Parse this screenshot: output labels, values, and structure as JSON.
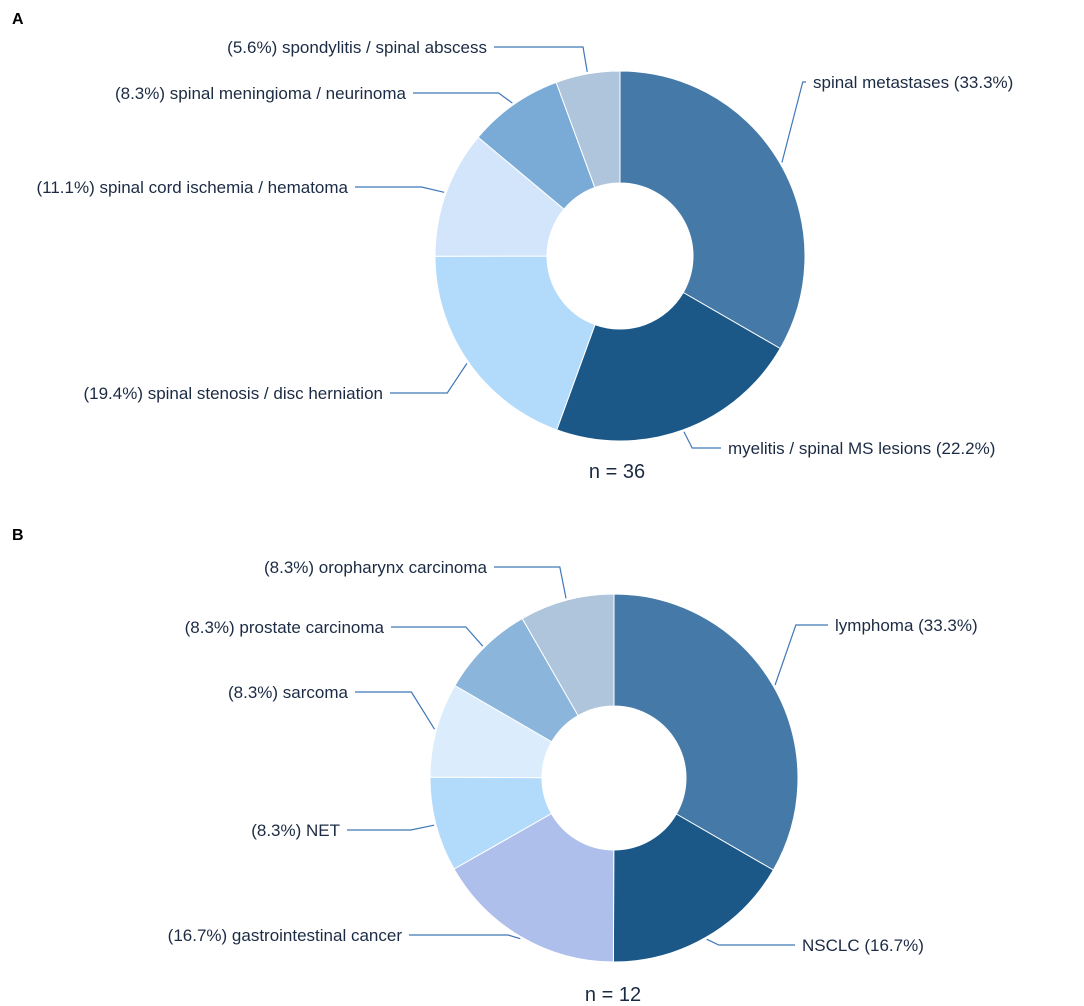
{
  "chart_data": [
    {
      "type": "pie",
      "panel": "A",
      "n_label": "n = 36",
      "slices": [
        {
          "label": "spinal metastases (33.3%)",
          "value": 33.3,
          "color": "#4479a8"
        },
        {
          "label": "myelitis / spinal MS lesions (22.2%)",
          "value": 22.2,
          "color": "#1b5888"
        },
        {
          "label": "(19.4%) spinal stenosis / disc herniation",
          "value": 19.4,
          "color": "#b2dafb"
        },
        {
          "label": "(11.1%) spinal cord ischemia / hematoma",
          "value": 11.1,
          "color": "#d3e5fa"
        },
        {
          "label": "(8.3%) spinal meningioma / neurinoma",
          "value": 8.3,
          "color": "#7aabd6"
        },
        {
          "label": "(5.6%) spondylitis / spinal abscess",
          "value": 5.6,
          "color": "#afc5db"
        }
      ]
    },
    {
      "type": "pie",
      "panel": "B",
      "n_label": "n = 12",
      "slices": [
        {
          "label": "lymphoma (33.3%)",
          "value": 33.3,
          "color": "#4479a8"
        },
        {
          "label": "NSCLC (16.7%)",
          "value": 16.7,
          "color": "#1b5888"
        },
        {
          "label": "(16.7%) gastrointestinal cancer",
          "value": 16.7,
          "color": "#afbfeb"
        },
        {
          "label": "(8.3%) NET",
          "value": 8.3,
          "color": "#b2dafb"
        },
        {
          "label": "(8.3%) sarcoma",
          "value": 8.3,
          "color": "#dbedfc"
        },
        {
          "label": "(8.3%) prostate carcinoma",
          "value": 8.3,
          "color": "#8cb5dc"
        },
        {
          "label": "(8.3%) oropharynx carcinoma",
          "value": 8.3,
          "color": "#afc5db"
        }
      ]
    }
  ]
}
